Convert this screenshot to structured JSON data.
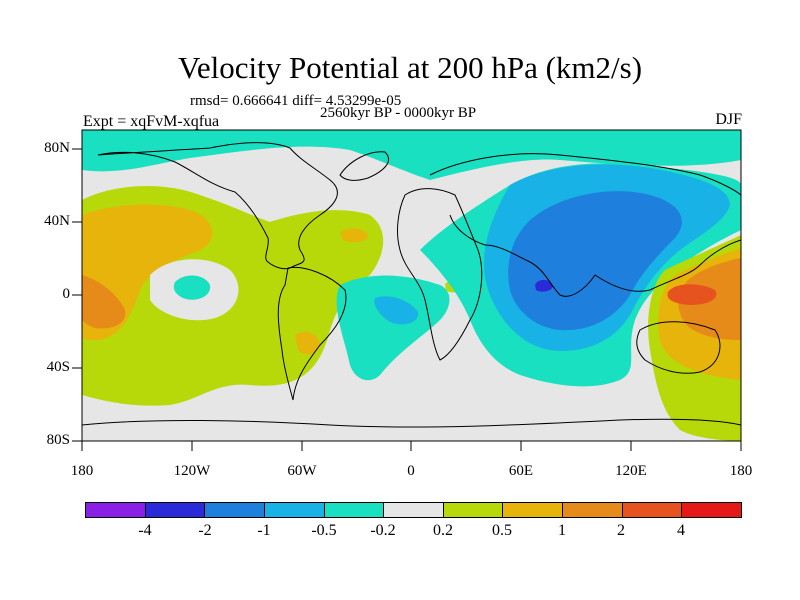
{
  "title": "Velocity Potential at 200 hPa (km2/s)",
  "stats": "rmsd= 0.666641 diff= 4.53299e-05",
  "period": "2560kyr BP - 0000kyr BP",
  "experiment": "Expt = xqFvM-xqfua",
  "season": "DJF",
  "lat_labels": [
    "80N",
    "40N",
    "0",
    "40S",
    "80S"
  ],
  "lon_labels": [
    "180",
    "120W",
    "60W",
    "0",
    "60E",
    "120E",
    "180"
  ],
  "colorbar": {
    "labels": [
      "-4",
      "-2",
      "-1",
      "-0.5",
      "-0.2",
      "0.2",
      "0.5",
      "1",
      "2",
      "4"
    ],
    "colors": [
      "#8a1fe6",
      "#2a2ad8",
      "#1f7fdc",
      "#19b2e6",
      "#19e0c0",
      "#e6e6e6",
      "#b7d90a",
      "#e6b40a",
      "#e68a19",
      "#e6531f",
      "#e61919"
    ]
  }
}
